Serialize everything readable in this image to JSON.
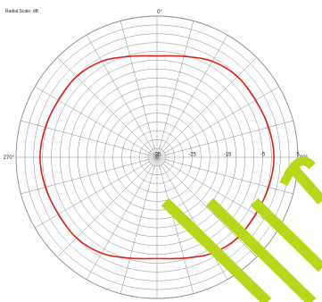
{
  "scale_label": "Radial Scale: dB",
  "chart_data": {
    "type": "polar-line",
    "title": "",
    "radial_unit": "dB",
    "radial_range": [
      -35,
      5
    ],
    "radial_tick_labels": [
      "-35",
      "-25",
      "-15",
      "-5",
      "5"
    ],
    "angle_labels": [
      "0°",
      "90°",
      "270°"
    ],
    "angular_grid_step_deg": 15,
    "grid": true,
    "series": [
      {
        "color": "#e0201c",
        "angles_deg": [
          0,
          15,
          30,
          45,
          60,
          75,
          90,
          105,
          120,
          135,
          150,
          165,
          180,
          195,
          210,
          225,
          240,
          255,
          270,
          285,
          300,
          315,
          330,
          345
        ],
        "values_db": [
          -6.3,
          -5.4,
          -3.6,
          -2.7,
          -2.7,
          -2.2,
          -1.8,
          -2.2,
          -2.7,
          -2.7,
          -3.6,
          -5.4,
          -6.3,
          -5.4,
          -3.6,
          -2.7,
          -2.7,
          -2.2,
          -1.8,
          -2.2,
          -2.7,
          -2.7,
          -3.6,
          -5.4
        ]
      }
    ]
  },
  "colors": {
    "grid": "#8a8a8a",
    "curve": "#e0201c",
    "watermark": "#b8d61a"
  }
}
